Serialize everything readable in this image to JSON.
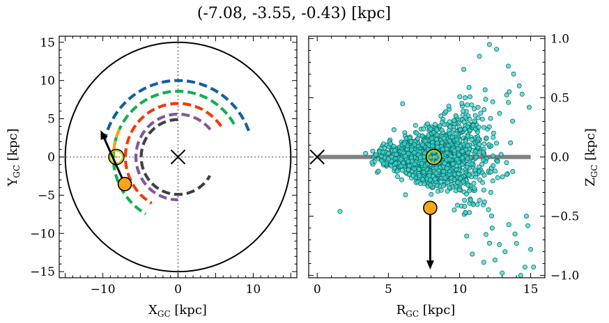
{
  "figure": {
    "title": "(-7.08, -3.55, -0.43) [kpc]"
  },
  "colors": {
    "outer_circle": "#000000",
    "grid_dotted": "#808080",
    "arm_blue": "#10609e",
    "arm_green": "#10b050",
    "arm_orange": "#ffa500",
    "arm_red": "#ee3b10",
    "arm_purple": "#805898",
    "arm_gray": "#404040",
    "scatter_face": "#3cd6cc",
    "scatter_edge": "#0f6b66",
    "object_marker": "#ffa515",
    "sun_marker": "#d2c000",
    "disk_line": "#808080"
  },
  "chart_data": [
    {
      "type": "line",
      "panel": "left",
      "xlabel": "X",
      "xlabel_sub": "GC",
      "xlabel_unit": " [kpc]",
      "ylabel": "Y",
      "ylabel_sub": "GC",
      "ylabel_unit": " [kpc]",
      "xlim": [
        -15.8,
        15.8
      ],
      "ylim": [
        -15.8,
        15.8
      ],
      "xticks": [
        -10,
        0,
        10
      ],
      "xtick_labels": [
        "−10",
        "0",
        "10"
      ],
      "yticks": [
        -15,
        -10,
        -5,
        0,
        5,
        10,
        15
      ],
      "ytick_labels": [
        "−15",
        "−10",
        "−5",
        "0",
        "5",
        "10",
        "15"
      ],
      "outer_circle_radius": 15,
      "galactic_center": [
        0,
        0
      ],
      "sun_position": [
        -8.2,
        0
      ],
      "object_position": [
        -7.08,
        -3.55
      ],
      "velocity_arrow": {
        "from": [
          -7.08,
          -3.55
        ],
        "to": [
          -10.3,
          3.5
        ]
      },
      "arms": [
        {
          "color_key": "arm_blue",
          "radius": 10.0,
          "theta_start": 20,
          "theta_end": 167
        },
        {
          "color_key": "arm_green",
          "radius": 8.6,
          "theta_start": 30,
          "theta_end": 240
        },
        {
          "color_key": "arm_orange",
          "radius": 8.6,
          "theta_start": 155,
          "theta_end": 178
        },
        {
          "color_key": "arm_red",
          "radius": 7.0,
          "theta_start": 35,
          "theta_end": 240
        },
        {
          "color_key": "arm_purple",
          "radius": 5.6,
          "theta_start": 40,
          "theta_end": 270
        },
        {
          "color_key": "arm_gray",
          "radius": 4.9,
          "theta_start": 90,
          "theta_end": 330
        }
      ]
    },
    {
      "type": "scatter",
      "panel": "right",
      "xlabel": "R",
      "xlabel_sub": "GC",
      "xlabel_unit": " [kpc]",
      "ylabel": "Z",
      "ylabel_sub": "GC",
      "ylabel_unit": " [kpc]",
      "xlim": [
        -0.6,
        16.0
      ],
      "ylim": [
        -1.02,
        1.02
      ],
      "xticks": [
        0,
        5,
        10,
        15
      ],
      "xtick_labels": [
        "0",
        "5",
        "10",
        "15"
      ],
      "yticks": [
        -1.0,
        -0.5,
        0.0,
        0.5,
        1.0
      ],
      "ytick_labels": [
        "−1.0",
        "−0.5",
        "0.0",
        "0.5",
        "1.0"
      ],
      "disk_line": {
        "x": [
          0,
          15
        ],
        "y": [
          0,
          0
        ]
      },
      "galactic_center": [
        0,
        0
      ],
      "sun_position": [
        8.2,
        0
      ],
      "object_position": [
        7.94,
        -0.43
      ],
      "velocity_arrow": {
        "from": [
          7.94,
          -0.43
        ],
        "to": [
          7.94,
          -0.95
        ]
      },
      "scatter_population": {
        "count": 1500,
        "r_mean": 8.3,
        "r_sigma": 1.8,
        "z_sigma_at_sun": 0.12,
        "seed": 7
      },
      "outliers": [
        [
          1.6,
          -0.46
        ],
        [
          3.4,
          0.03
        ],
        [
          4.3,
          -0.12
        ],
        [
          12.1,
          0.95
        ],
        [
          12.6,
          0.91
        ],
        [
          13.8,
          0.7
        ],
        [
          14.4,
          0.53
        ],
        [
          14.8,
          -0.58
        ],
        [
          15.0,
          -0.78
        ],
        [
          14.0,
          -0.73
        ],
        [
          14.6,
          -0.93
        ],
        [
          15.2,
          -0.93
        ],
        [
          12.8,
          -0.74
        ],
        [
          13.2,
          -0.8
        ],
        [
          12.5,
          -0.87
        ],
        [
          11.7,
          -0.89
        ],
        [
          10.9,
          -0.82
        ],
        [
          14.2,
          0.6
        ],
        [
          13.5,
          0.55
        ],
        [
          6.0,
          0.45
        ],
        [
          6.2,
          -0.32
        ],
        [
          5.4,
          0.23
        ],
        [
          10.3,
          0.74
        ],
        [
          11.4,
          0.85
        ],
        [
          14.9,
          0.42
        ],
        [
          14.7,
          -0.5
        ],
        [
          13.9,
          -0.65
        ],
        [
          12.3,
          -0.6
        ],
        [
          14.3,
          -1.0
        ],
        [
          13.0,
          -0.98
        ]
      ]
    }
  ]
}
